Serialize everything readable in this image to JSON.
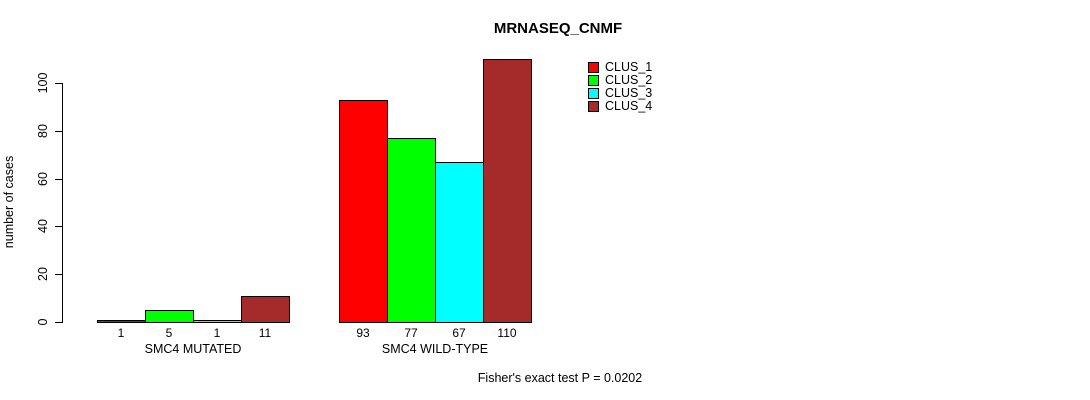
{
  "chart_data": {
    "type": "bar",
    "title": "MRNASEQ_CNMF",
    "ylabel": "number of cases",
    "xlabel": "",
    "ylim": [
      0,
      110
    ],
    "yticks": [
      0,
      20,
      40,
      60,
      80,
      100
    ],
    "grid": false,
    "legend_position": "top-right",
    "legend": [
      {
        "label": "CLUS_1",
        "color": "#FF0000"
      },
      {
        "label": "CLUS_2",
        "color": "#00FF00"
      },
      {
        "label": "CLUS_3",
        "color": "#00FFFF"
      },
      {
        "label": "CLUS_4",
        "color": "#A52A2A"
      }
    ],
    "categories": [
      "SMC4 MUTATED",
      "SMC4 WILD-TYPE"
    ],
    "series": [
      {
        "name": "CLUS_1",
        "color": "#FF0000",
        "values": [
          1,
          93
        ]
      },
      {
        "name": "CLUS_2",
        "color": "#00FF00",
        "values": [
          5,
          77
        ]
      },
      {
        "name": "CLUS_3",
        "color": "#00FFFF",
        "values": [
          1,
          67
        ]
      },
      {
        "name": "CLUS_4",
        "color": "#A52A2A",
        "values": [
          11,
          110
        ]
      }
    ],
    "bar_value_labels": [
      [
        1,
        5,
        1,
        11
      ],
      [
        93,
        77,
        67,
        110
      ]
    ],
    "annotation": "Fisher's exact test P = 0.0202"
  },
  "colors": {
    "background": "#FFFFFF",
    "bar_border": "#000000",
    "axis": "#000000",
    "text": "#000000"
  }
}
